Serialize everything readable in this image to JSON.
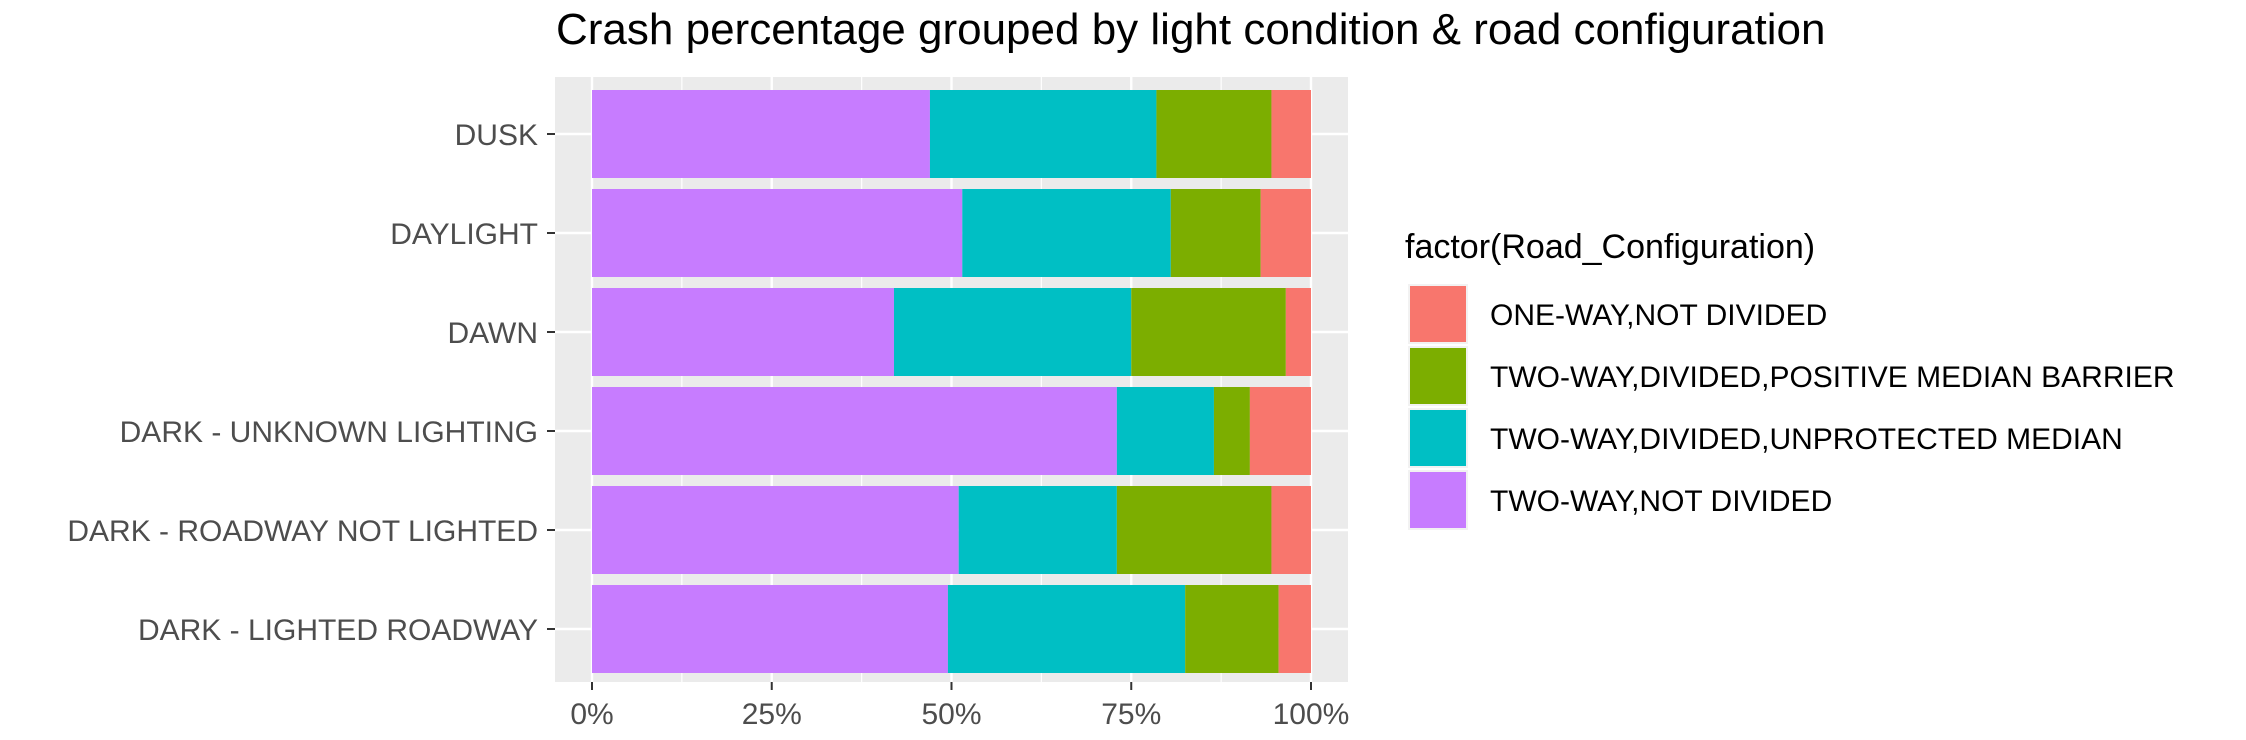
{
  "chart_data": {
    "type": "bar",
    "orientation": "horizontal",
    "stacked": "percent",
    "title": "Crash percentage grouped by light condition & road configuration",
    "categories": [
      "DUSK",
      "DAYLIGHT",
      "DAWN",
      "DARK - UNKNOWN LIGHTING",
      "DARK - ROADWAY NOT LIGHTED",
      "DARK - LIGHTED ROADWAY"
    ],
    "x_ticks": [
      "0%",
      "25%",
      "50%",
      "75%",
      "100%"
    ],
    "xlim": [
      0,
      1
    ],
    "grid": true,
    "legend": {
      "title": "factor(Road_Configuration)",
      "placement": "right"
    },
    "series": [
      {
        "name": "TWO-WAY,NOT DIVIDED",
        "color": "#C77CFF",
        "values": [
          0.47,
          0.515,
          0.42,
          0.73,
          0.51,
          0.495
        ]
      },
      {
        "name": "TWO-WAY,DIVIDED,UNPROTECTED MEDIAN",
        "color": "#00BFC4",
        "values": [
          0.315,
          0.29,
          0.33,
          0.135,
          0.22,
          0.33
        ]
      },
      {
        "name": "TWO-WAY,DIVIDED,POSITIVE MEDIAN BARRIER",
        "color": "#7CAE00",
        "values": [
          0.16,
          0.125,
          0.215,
          0.05,
          0.215,
          0.13
        ]
      },
      {
        "name": "ONE-WAY,NOT DIVIDED",
        "color": "#F8766D",
        "values": [
          0.055,
          0.07,
          0.035,
          0.085,
          0.055,
          0.045
        ]
      }
    ],
    "legend_order": [
      "ONE-WAY,NOT DIVIDED",
      "TWO-WAY,DIVIDED,POSITIVE MEDIAN BARRIER",
      "TWO-WAY,DIVIDED,UNPROTECTED MEDIAN",
      "TWO-WAY,NOT DIVIDED"
    ]
  }
}
